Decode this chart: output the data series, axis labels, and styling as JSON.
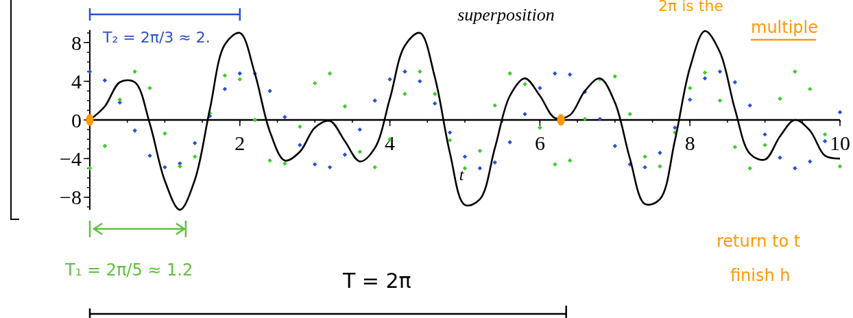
{
  "chart_data": {
    "type": "line",
    "title": "superposition",
    "xlabel": "t",
    "x": [
      0,
      0.2,
      0.4,
      0.6,
      0.8,
      1,
      1.2,
      1.4,
      1.6,
      1.8,
      2,
      2.2,
      2.4,
      2.6,
      2.8,
      3,
      3.2,
      3.4,
      3.6,
      3.8,
      4,
      4.2,
      4.4,
      4.6,
      4.8,
      5,
      5.2,
      5.4,
      5.6,
      5.8,
      6,
      6.2,
      6.4,
      6.6,
      6.8,
      7,
      7.2,
      7.4,
      7.6,
      7.8,
      8,
      8.2,
      8.4,
      8.6,
      8.8,
      9,
      9.2,
      9.4,
      9.6,
      9.8,
      10
    ],
    "series": [
      {
        "type": "scatter",
        "marker": "diamond",
        "color": "#2a4fd0",
        "values": [
          5.0,
          4.1,
          1.8,
          -1.1,
          -3.7,
          -4.9,
          -4.5,
          -2.4,
          0.4,
          3.2,
          4.8,
          4.8,
          3.0,
          0.3,
          -2.6,
          -4.6,
          -4.9,
          -3.6,
          -1.0,
          2.0,
          4.2,
          5.0,
          4.0,
          1.7,
          -1.3,
          -3.8,
          -5.0,
          -4.4,
          -2.3,
          0.6,
          3.3,
          4.8,
          4.7,
          2.9,
          0.1,
          -2.7,
          -4.6,
          -4.9,
          -3.4,
          -0.8,
          2.1,
          4.3,
          5.0,
          3.9,
          1.5,
          -1.5,
          -3.9,
          -5.0,
          -4.3,
          -2.2,
          0.8
        ]
      },
      {
        "type": "scatter",
        "marker": "diamond",
        "color": "#3ccc2a",
        "values": [
          -5.0,
          -2.7,
          2.1,
          5.0,
          3.3,
          -1.4,
          -4.8,
          -3.8,
          0.7,
          4.6,
          4.2,
          0.0,
          -4.2,
          -4.5,
          -0.7,
          3.8,
          4.8,
          1.4,
          -3.3,
          -4.9,
          -2.0,
          2.7,
          5.0,
          2.7,
          -2.1,
          -5.0,
          -3.2,
          1.5,
          4.8,
          3.7,
          -0.8,
          -4.6,
          -4.2,
          0.1,
          4.2,
          4.5,
          0.6,
          -3.8,
          -4.8,
          -1.3,
          3.3,
          4.9,
          2.0,
          -2.8,
          -5.0,
          -2.6,
          2.2,
          5.0,
          3.2,
          -1.5,
          -4.8
        ]
      },
      {
        "marker": "none",
        "color": "#000000",
        "values": [
          0.0,
          1.4,
          3.9,
          3.9,
          -0.4,
          -6.3,
          -9.3,
          -6.2,
          1.1,
          7.8,
          9.0,
          4.8,
          -1.2,
          -4.2,
          -3.3,
          -0.8,
          -0.1,
          -2.2,
          -4.3,
          -2.9,
          2.2,
          7.7,
          9.0,
          4.4,
          -3.4,
          -8.8,
          -8.2,
          -2.9,
          2.5,
          4.3,
          2.5,
          0.2,
          0.5,
          3.0,
          4.3,
          1.8,
          -4.0,
          -8.7,
          -8.2,
          -2.1,
          5.4,
          9.2,
          7.0,
          1.1,
          -3.5,
          -4.1,
          -1.7,
          0.0,
          -1.1,
          -3.7,
          -4.0
        ]
      },
      {
        "type": "scatter",
        "marker": "circle",
        "color": "#ff9900",
        "x": [
          0,
          6.28
        ],
        "values": [
          0,
          0
        ]
      }
    ],
    "xlim": [
      0,
      10
    ],
    "xticks": [
      2,
      4,
      6,
      8,
      10
    ],
    "ylim": [
      -9.3,
      9.3
    ],
    "yticks": [
      {
        "value": -8,
        "label": "−8"
      },
      {
        "value": -4,
        "label": "−4"
      },
      0,
      4,
      8
    ],
    "grid": false,
    "annotations": [
      "T₂ = 2π/3 ≈ 2.",
      "T₁ = 2π/5 ≈ 1.2",
      "T = 2π",
      "2π is the",
      "multiple",
      "return to t",
      "finish h"
    ]
  }
}
